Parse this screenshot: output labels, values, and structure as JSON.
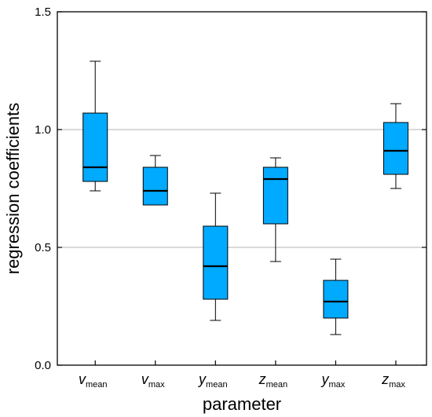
{
  "colors": {
    "box_fill": "#00aaff",
    "box_stroke": "#000000",
    "grid": "#b3b3b3",
    "frame": "#000000"
  },
  "chart_data": {
    "type": "boxplot",
    "title": "",
    "xlabel": "parameter",
    "ylabel": "regression coefficients",
    "ylim": [
      0.0,
      1.5
    ],
    "yticks": [
      0.0,
      0.5,
      1.0,
      1.5
    ],
    "ytick_labels": [
      "0.0",
      "0.5",
      "1.0",
      "1.5"
    ],
    "grid": "horizontal at 0.5 and 1.0",
    "categories": [
      {
        "base": "v",
        "sub": "mean"
      },
      {
        "base": "v",
        "sub": "max"
      },
      {
        "base": "y",
        "sub": "mean"
      },
      {
        "base": "z",
        "sub": "mean"
      },
      {
        "base": "y",
        "sub": "max"
      },
      {
        "base": "z",
        "sub": "max"
      }
    ],
    "boxes": [
      {
        "min": 0.74,
        "q1": 0.78,
        "median": 0.84,
        "q3": 1.07,
        "max": 1.29
      },
      {
        "min": 0.68,
        "q1": 0.68,
        "median": 0.74,
        "q3": 0.84,
        "max": 0.89
      },
      {
        "min": 0.19,
        "q1": 0.28,
        "median": 0.42,
        "q3": 0.59,
        "max": 0.73
      },
      {
        "min": 0.44,
        "q1": 0.6,
        "median": 0.79,
        "q3": 0.84,
        "max": 0.88
      },
      {
        "min": 0.13,
        "q1": 0.2,
        "median": 0.27,
        "q3": 0.36,
        "max": 0.45
      },
      {
        "min": 0.75,
        "q1": 0.81,
        "median": 0.91,
        "q3": 1.03,
        "max": 1.11
      }
    ]
  }
}
